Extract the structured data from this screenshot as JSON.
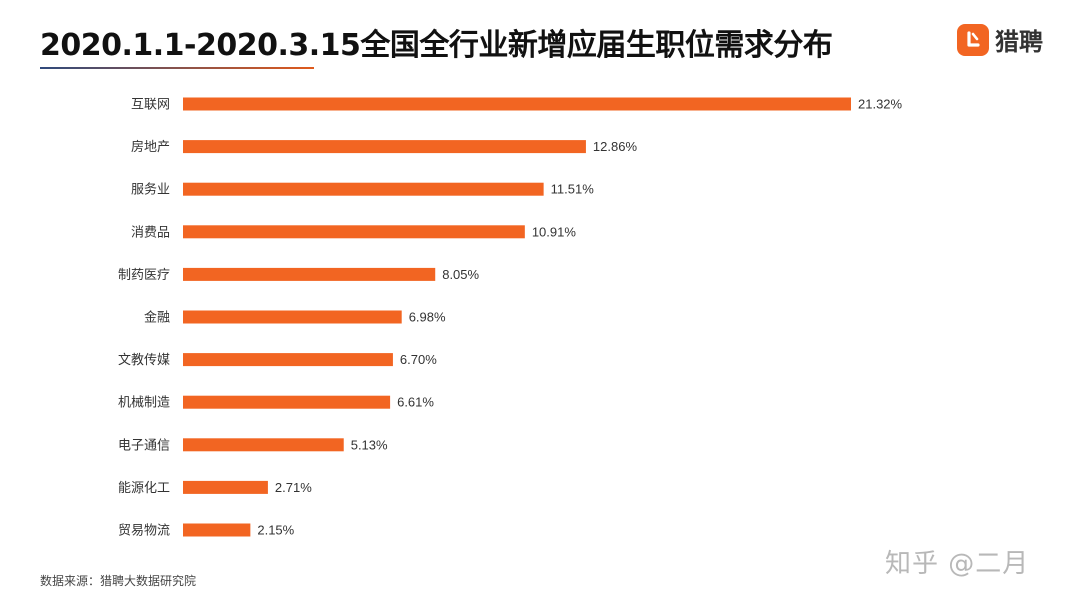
{
  "header": {
    "title": "2020.1.1-2020.3.15全国全行业新增应届生职位需求分布",
    "logo_text": "猎聘",
    "logo_icon": "liepin-logo-icon"
  },
  "footer": {
    "source": "数据来源：猎聘大数据研究院",
    "watermark": "知乎 @二月"
  },
  "colors": {
    "bar": "#f26522",
    "text": "#333333"
  },
  "chart_data": {
    "type": "bar",
    "orientation": "horizontal",
    "title": "2020.1.1-2020.3.15全国全行业新增应届生职位需求分布",
    "categories": [
      "互联网",
      "房地产",
      "服务业",
      "消费品",
      "制药医疗",
      "金融",
      "文教传媒",
      "机械制造",
      "电子通信",
      "能源化工",
      "贸易物流"
    ],
    "values": [
      21.32,
      12.86,
      11.51,
      10.91,
      8.05,
      6.98,
      6.7,
      6.61,
      5.13,
      2.71,
      2.15
    ],
    "value_labels": [
      "21.32%",
      "12.86%",
      "11.51%",
      "10.91%",
      "8.05%",
      "6.98%",
      "6.70%",
      "6.61%",
      "5.13%",
      "2.71%",
      "2.15%"
    ],
    "unit": "%",
    "xlim": [
      0,
      21.32
    ],
    "grid": false,
    "legend": "none"
  }
}
